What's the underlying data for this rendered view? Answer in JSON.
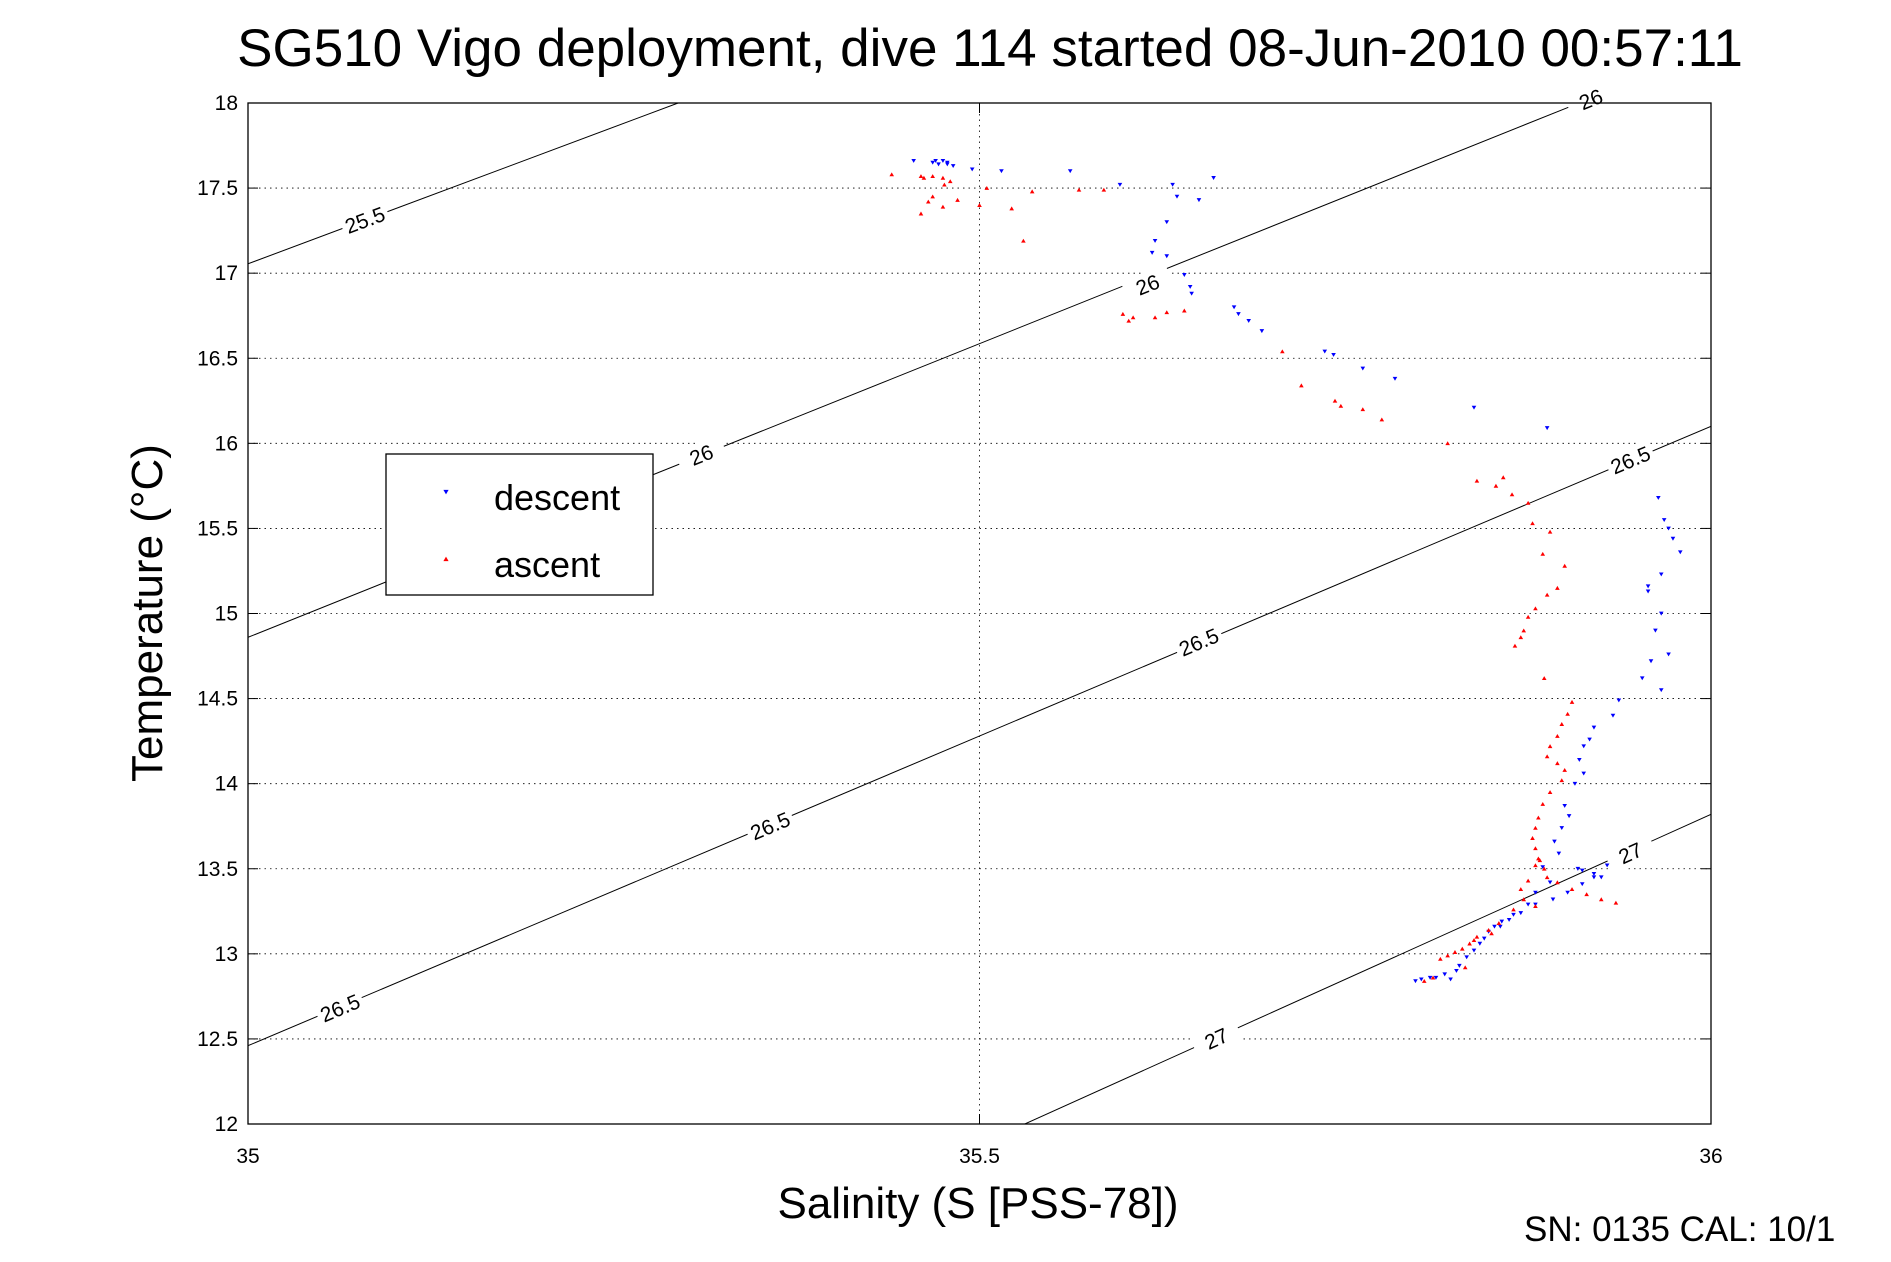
{
  "chart_data": {
    "type": "scatter",
    "title": "SG510 Vigo deployment, dive 114 started 08-Jun-2010 00:57:11",
    "xlabel": "Salinity (S [PSS-78])",
    "ylabel": "Temperature (°C)",
    "xlim": [
      35,
      36
    ],
    "ylim": [
      12,
      18
    ],
    "xticks": [
      "35",
      "35.5",
      "36"
    ],
    "yticks": [
      "12",
      "12.5",
      "13",
      "13.5",
      "14",
      "14.5",
      "15",
      "15.5",
      "16",
      "16.5",
      "17",
      "17.5",
      "18"
    ],
    "grid": true,
    "legend": {
      "position": "left-middle",
      "entries": [
        "descent",
        "ascent"
      ]
    },
    "colors": {
      "descent": "#0000ff",
      "ascent": "#ff0000",
      "contour": "#000000"
    },
    "contour_labels": [
      "25.5",
      "26",
      "26",
      "26",
      "26.5",
      "26.5",
      "26.5",
      "26.5",
      "27",
      "27"
    ],
    "series": [
      {
        "name": "descent",
        "marker": "triangle-down",
        "points": [
          [
            35.455,
            17.66
          ],
          [
            35.468,
            17.65
          ],
          [
            35.47,
            17.66
          ],
          [
            35.472,
            17.64
          ],
          [
            35.475,
            17.66
          ],
          [
            35.478,
            17.64
          ],
          [
            35.482,
            17.63
          ],
          [
            35.478,
            17.65
          ],
          [
            35.495,
            17.61
          ],
          [
            35.515,
            17.6
          ],
          [
            35.562,
            17.6
          ],
          [
            35.596,
            17.52
          ],
          [
            35.632,
            17.52
          ],
          [
            35.66,
            17.56
          ],
          [
            35.65,
            17.43
          ],
          [
            35.635,
            17.45
          ],
          [
            35.628,
            17.3
          ],
          [
            35.62,
            17.19
          ],
          [
            35.618,
            17.12
          ],
          [
            35.628,
            17.1
          ],
          [
            35.64,
            16.99
          ],
          [
            35.644,
            16.92
          ],
          [
            35.645,
            16.88
          ],
          [
            35.674,
            16.8
          ],
          [
            35.677,
            16.76
          ],
          [
            35.684,
            16.72
          ],
          [
            35.693,
            16.66
          ],
          [
            35.736,
            16.54
          ],
          [
            35.742,
            16.52
          ],
          [
            35.762,
            16.44
          ],
          [
            35.784,
            16.38
          ],
          [
            35.838,
            16.21
          ],
          [
            35.888,
            16.09
          ],
          [
            35.964,
            15.68
          ],
          [
            35.968,
            15.55
          ],
          [
            35.971,
            15.5
          ],
          [
            35.974,
            15.44
          ],
          [
            35.979,
            15.36
          ],
          [
            35.966,
            15.23
          ],
          [
            35.957,
            15.16
          ],
          [
            35.957,
            15.13
          ],
          [
            35.966,
            15.0
          ],
          [
            35.962,
            14.9
          ],
          [
            35.971,
            14.76
          ],
          [
            35.959,
            14.72
          ],
          [
            35.953,
            14.62
          ],
          [
            35.966,
            14.55
          ],
          [
            35.937,
            14.49
          ],
          [
            35.933,
            14.4
          ],
          [
            35.92,
            14.33
          ],
          [
            35.917,
            14.26
          ],
          [
            35.913,
            14.22
          ],
          [
            35.91,
            14.14
          ],
          [
            35.913,
            14.06
          ],
          [
            35.907,
            14.0
          ],
          [
            35.9,
            13.87
          ],
          [
            35.903,
            13.81
          ],
          [
            35.898,
            13.74
          ],
          [
            35.893,
            13.66
          ],
          [
            35.896,
            13.59
          ],
          [
            35.885,
            13.51
          ],
          [
            35.909,
            13.5
          ],
          [
            35.912,
            13.49
          ],
          [
            35.92,
            13.47
          ],
          [
            35.929,
            13.52
          ],
          [
            35.925,
            13.45
          ],
          [
            35.89,
            13.42
          ],
          [
            35.88,
            13.36
          ],
          [
            35.875,
            13.29
          ],
          [
            35.865,
            13.23
          ],
          [
            35.857,
            13.19
          ],
          [
            35.852,
            13.16
          ],
          [
            35.848,
            13.13
          ],
          [
            35.845,
            13.09
          ],
          [
            35.842,
            13.06
          ],
          [
            35.838,
            13.02
          ],
          [
            35.833,
            12.98
          ],
          [
            35.828,
            12.93
          ],
          [
            35.826,
            12.9
          ],
          [
            35.818,
            12.88
          ],
          [
            35.812,
            12.86
          ],
          [
            35.808,
            12.86
          ],
          [
            35.802,
            12.85
          ],
          [
            35.798,
            12.84
          ],
          [
            35.822,
            12.85
          ],
          [
            35.856,
            13.16
          ],
          [
            35.862,
            13.2
          ],
          [
            35.87,
            13.24
          ],
          [
            35.88,
            13.29
          ],
          [
            35.892,
            13.32
          ],
          [
            35.902,
            13.36
          ],
          [
            35.912,
            13.41
          ],
          [
            35.92,
            13.45
          ]
        ]
      },
      {
        "name": "ascent",
        "marker": "triangle-up",
        "points": [
          [
            35.44,
            17.58
          ],
          [
            35.46,
            17.57
          ],
          [
            35.462,
            17.56
          ],
          [
            35.468,
            17.57
          ],
          [
            35.475,
            17.56
          ],
          [
            35.48,
            17.54
          ],
          [
            35.476,
            17.52
          ],
          [
            35.468,
            17.45
          ],
          [
            35.465,
            17.42
          ],
          [
            35.485,
            17.43
          ],
          [
            35.475,
            17.39
          ],
          [
            35.46,
            17.35
          ],
          [
            35.505,
            17.5
          ],
          [
            35.5,
            17.4
          ],
          [
            35.522,
            17.38
          ],
          [
            35.536,
            17.48
          ],
          [
            35.568,
            17.49
          ],
          [
            35.585,
            17.49
          ],
          [
            35.53,
            17.19
          ],
          [
            35.598,
            16.76
          ],
          [
            35.602,
            16.72
          ],
          [
            35.605,
            16.74
          ],
          [
            35.62,
            16.74
          ],
          [
            35.628,
            16.77
          ],
          [
            35.64,
            16.78
          ],
          [
            35.707,
            16.54
          ],
          [
            35.72,
            16.34
          ],
          [
            35.743,
            16.25
          ],
          [
            35.747,
            16.22
          ],
          [
            35.762,
            16.2
          ],
          [
            35.775,
            16.14
          ],
          [
            35.82,
            16.0
          ],
          [
            35.84,
            15.78
          ],
          [
            35.853,
            15.75
          ],
          [
            35.858,
            15.8
          ],
          [
            35.864,
            15.7
          ],
          [
            35.875,
            15.65
          ],
          [
            35.878,
            15.53
          ],
          [
            35.89,
            15.48
          ],
          [
            35.885,
            15.35
          ],
          [
            35.9,
            15.28
          ],
          [
            35.895,
            15.15
          ],
          [
            35.888,
            15.11
          ],
          [
            35.88,
            15.03
          ],
          [
            35.875,
            14.98
          ],
          [
            35.872,
            14.9
          ],
          [
            35.87,
            14.86
          ],
          [
            35.866,
            14.81
          ],
          [
            35.886,
            14.62
          ],
          [
            35.905,
            14.48
          ],
          [
            35.902,
            14.41
          ],
          [
            35.898,
            14.35
          ],
          [
            35.895,
            14.28
          ],
          [
            35.89,
            14.22
          ],
          [
            35.888,
            14.16
          ],
          [
            35.895,
            14.12
          ],
          [
            35.9,
            14.08
          ],
          [
            35.898,
            14.02
          ],
          [
            35.89,
            13.95
          ],
          [
            35.885,
            13.88
          ],
          [
            35.882,
            13.8
          ],
          [
            35.88,
            13.74
          ],
          [
            35.878,
            13.68
          ],
          [
            35.88,
            13.62
          ],
          [
            35.882,
            13.56
          ],
          [
            35.886,
            13.5
          ],
          [
            35.888,
            13.45
          ],
          [
            35.895,
            13.42
          ],
          [
            35.905,
            13.38
          ],
          [
            35.915,
            13.35
          ],
          [
            35.925,
            13.32
          ],
          [
            35.935,
            13.3
          ],
          [
            35.875,
            13.43
          ],
          [
            35.87,
            13.38
          ],
          [
            35.872,
            13.32
          ],
          [
            35.88,
            13.28
          ],
          [
            35.88,
            13.52
          ],
          [
            35.883,
            13.55
          ],
          [
            35.865,
            13.26
          ],
          [
            35.855,
            13.18
          ],
          [
            35.848,
            13.14
          ],
          [
            35.84,
            13.1
          ],
          [
            35.835,
            13.06
          ],
          [
            35.83,
            13.03
          ],
          [
            35.825,
            13.01
          ],
          [
            35.82,
            12.99
          ],
          [
            35.815,
            12.97
          ],
          [
            35.838,
            13.08
          ],
          [
            35.85,
            13.12
          ],
          [
            35.81,
            12.86
          ],
          [
            35.804,
            12.84
          ],
          [
            35.832,
            12.92
          ]
        ]
      }
    ]
  },
  "footer": {
    "sn_text": "SN: 0135  CAL: 10/1"
  }
}
